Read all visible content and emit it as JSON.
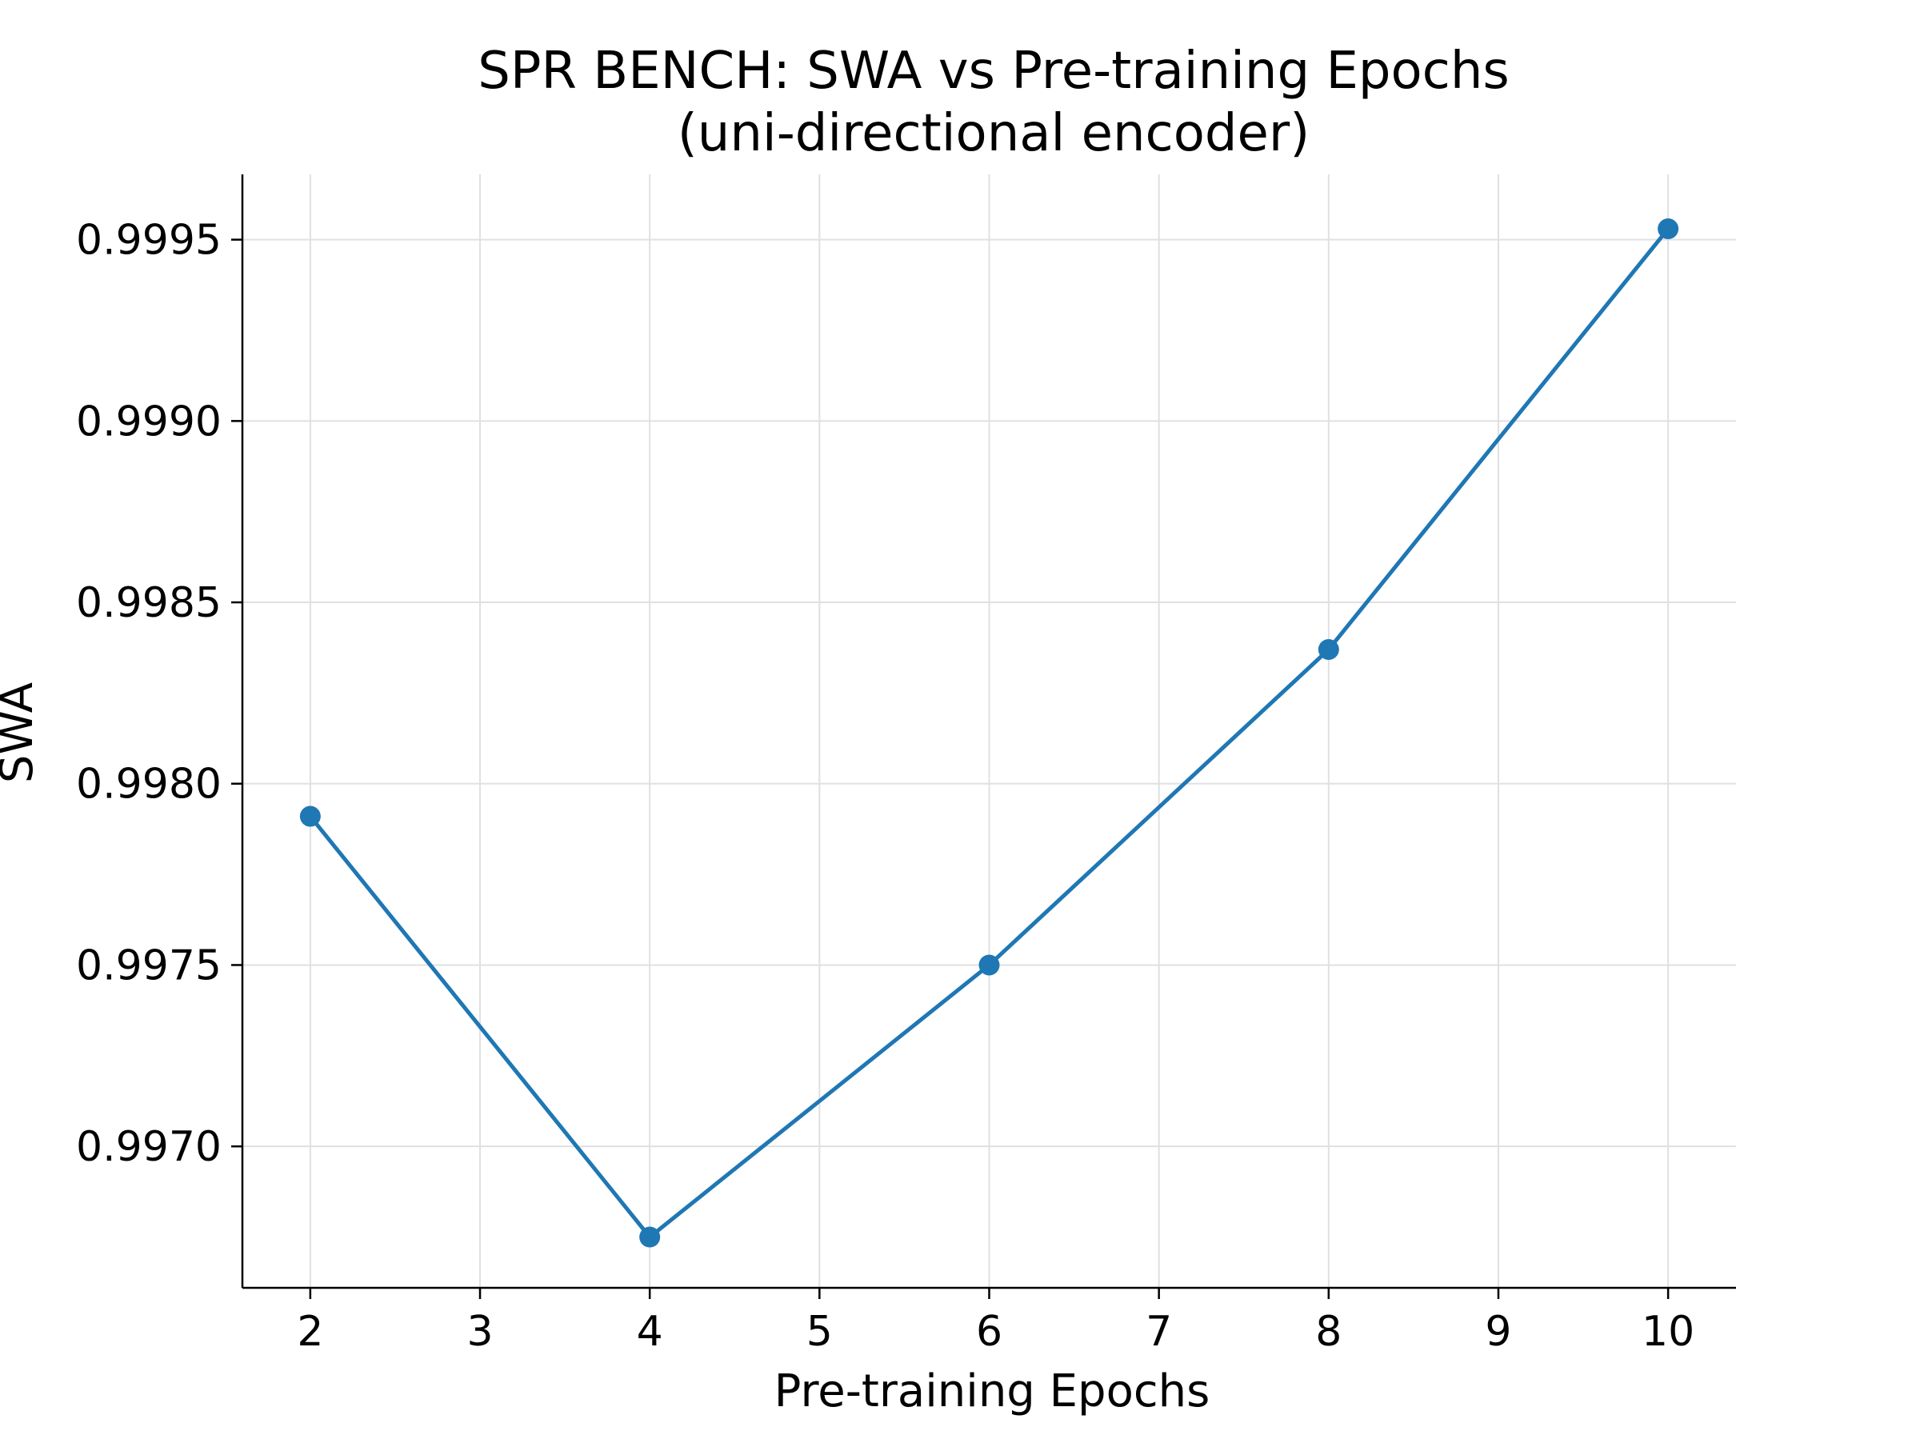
{
  "chart_data": {
    "type": "line",
    "title": [
      "SPR BENCH: SWA vs Pre-training Epochs",
      "(uni-directional encoder)"
    ],
    "xlabel": "Pre-training Epochs",
    "ylabel": "SWA",
    "x": [
      2,
      4,
      6,
      8,
      10
    ],
    "series": [
      {
        "values": [
          0.99791,
          0.99675,
          0.9975,
          0.99837,
          0.99953
        ]
      }
    ],
    "xlim": [
      1.6,
      10.4
    ],
    "ylim": [
      0.99661,
      0.99968
    ],
    "xticks": [
      2,
      3,
      4,
      5,
      6,
      7,
      8,
      9,
      10
    ],
    "xtick_labels": [
      "2",
      "3",
      "4",
      "5",
      "6",
      "7",
      "8",
      "9",
      "10"
    ],
    "yticks": [
      0.997,
      0.9975,
      0.998,
      0.9985,
      0.999,
      0.9995
    ],
    "ytick_labels": [
      "0.9970",
      "0.9975",
      "0.9980",
      "0.9985",
      "0.9990",
      "0.9995"
    ],
    "grid": true,
    "legend": "none",
    "colors": {
      "line": "#1f77b4",
      "grid": "#e0e0e0",
      "axis": "#000000"
    }
  }
}
